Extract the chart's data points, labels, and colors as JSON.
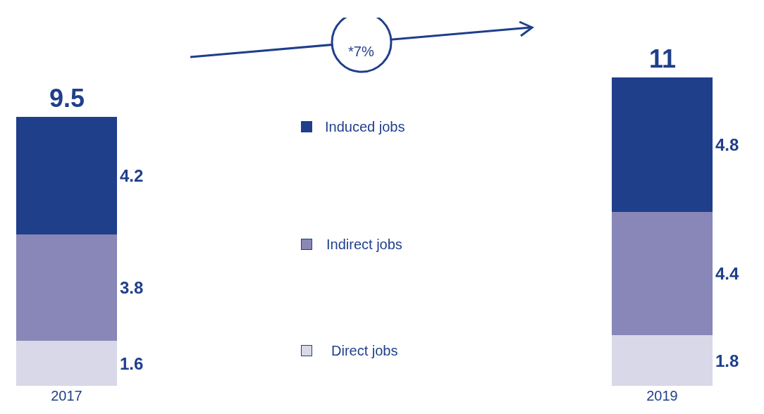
{
  "chart_data": {
    "type": "bar",
    "stacked": true,
    "data_labels": true,
    "categories": [
      "2017",
      "2019"
    ],
    "series": [
      {
        "name": "Direct jobs",
        "color": "#d8d8e8",
        "values": [
          1.6,
          1.8
        ]
      },
      {
        "name": "Indirect jobs",
        "color": "#8987b8",
        "values": [
          3.8,
          4.4
        ]
      },
      {
        "name": "Induced jobs",
        "color": "#1f3f8b",
        "values": [
          4.2,
          4.8
        ]
      }
    ],
    "legend": "center",
    "totals": [
      "9.5",
      "11"
    ],
    "annotations": [
      "*7%"
    ]
  }
}
